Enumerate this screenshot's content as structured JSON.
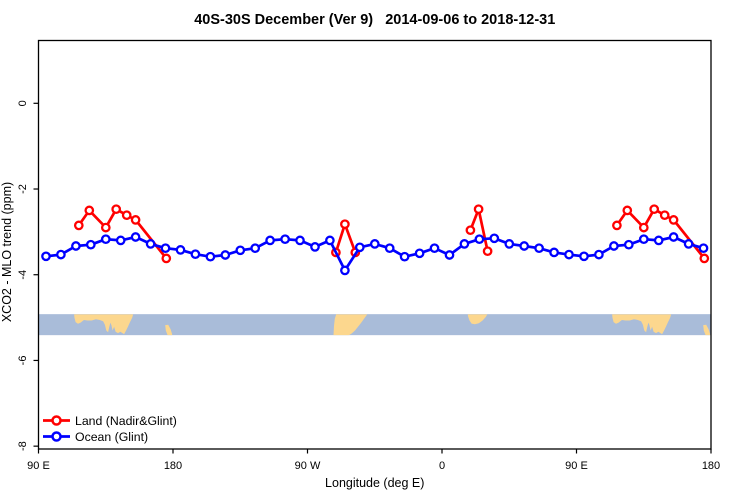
{
  "chart_data": {
    "type": "line",
    "title": "40S-30S December (Ver 9)   2014-09-06 to 2018-12-31",
    "xlabel": "Longitude (deg E)",
    "ylabel": "XCO2 - MLO trend (ppm)",
    "xlim": [
      90,
      540
    ],
    "ylim": [
      -8.1,
      1.45
    ],
    "grid": false,
    "x_ticks": [
      {
        "pos": 90,
        "label": "90 E"
      },
      {
        "pos": 180,
        "label": "180"
      },
      {
        "pos": 270,
        "label": "90 W"
      },
      {
        "pos": 360,
        "label": "0"
      },
      {
        "pos": 450,
        "label": "90 E"
      },
      {
        "pos": 540,
        "label": "180"
      }
    ],
    "y_ticks": [
      {
        "pos": 0,
        "label": "0"
      },
      {
        "pos": -2,
        "label": "-2"
      },
      {
        "pos": -4,
        "label": "-4"
      },
      {
        "pos": -6,
        "label": "-6"
      },
      {
        "pos": -8,
        "label": "-8"
      }
    ],
    "legend": {
      "position": "bottom-left",
      "items": [
        {
          "label": "Land (Nadir&Glint)",
          "color": "#ff0000"
        },
        {
          "label": "Ocean (Glint)",
          "color": "#0000ff"
        }
      ]
    },
    "series": [
      {
        "name": "Land (Nadir&Glint)",
        "color": "#ff0000",
        "marker": "open-circle",
        "segments": [
          [
            [
              117,
              -2.85
            ],
            [
              124,
              -2.5
            ],
            [
              135,
              -2.9
            ],
            [
              142,
              -2.47
            ],
            [
              149,
              -2.61
            ],
            [
              155,
              -2.72
            ],
            [
              175.5,
              -3.62
            ]
          ],
          [
            [
              289,
              -3.48
            ],
            [
              295,
              -2.82
            ],
            [
              302,
              -3.48
            ]
          ],
          [
            [
              379,
              -2.96
            ],
            [
              384.5,
              -2.47
            ],
            [
              390.5,
              -3.45
            ]
          ],
          [
            [
              477,
              -2.85
            ],
            [
              484,
              -2.5
            ],
            [
              495,
              -2.9
            ],
            [
              502,
              -2.47
            ],
            [
              509,
              -2.61
            ],
            [
              515,
              -2.72
            ],
            [
              535.5,
              -3.62
            ]
          ]
        ]
      },
      {
        "name": "Ocean (Glint)",
        "color": "#0000ff",
        "marker": "open-circle",
        "segments": [
          [
            [
              95,
              -3.57
            ],
            [
              105,
              -3.53
            ],
            [
              115,
              -3.33
            ],
            [
              125,
              -3.3
            ],
            [
              135,
              -3.17
            ],
            [
              145,
              -3.2
            ],
            [
              155,
              -3.12
            ],
            [
              165,
              -3.28
            ],
            [
              175,
              -3.38
            ],
            [
              185,
              -3.42
            ],
            [
              195,
              -3.52
            ],
            [
              205,
              -3.58
            ],
            [
              215,
              -3.54
            ],
            [
              225,
              -3.43
            ],
            [
              235,
              -3.38
            ],
            [
              245,
              -3.2
            ],
            [
              255,
              -3.17
            ],
            [
              265,
              -3.2
            ],
            [
              275,
              -3.35
            ],
            [
              285,
              -3.2
            ],
            [
              295,
              -3.9
            ],
            [
              305,
              -3.36
            ],
            [
              315,
              -3.28
            ],
            [
              325,
              -3.38
            ],
            [
              335,
              -3.58
            ],
            [
              345,
              -3.5
            ],
            [
              355,
              -3.38
            ],
            [
              365,
              -3.54
            ],
            [
              375,
              -3.28
            ],
            [
              385,
              -3.17
            ],
            [
              395,
              -3.15
            ],
            [
              405,
              -3.28
            ],
            [
              415,
              -3.33
            ],
            [
              425,
              -3.38
            ],
            [
              435,
              -3.48
            ],
            [
              445,
              -3.53
            ],
            [
              455,
              -3.57
            ],
            [
              465,
              -3.53
            ],
            [
              475,
              -3.33
            ],
            [
              485,
              -3.3
            ],
            [
              495,
              -3.17
            ],
            [
              505,
              -3.2
            ],
            [
              515,
              -3.12
            ],
            [
              525,
              -3.28
            ],
            [
              535,
              -3.38
            ]
          ]
        ]
      }
    ],
    "map_strip": {
      "y_top": -4.92,
      "y_bottom": -5.41,
      "ocean_color": "#a9bcd9",
      "land_color": "#fcd78e",
      "lands": [
        {
          "name": "australia",
          "offsets": [
            0,
            360
          ],
          "points": [
            [
              113.8,
              0
            ],
            [
              153.4,
              0
            ],
            [
              152.6,
              0.18
            ],
            [
              151.2,
              0.38
            ],
            [
              149.8,
              0.6
            ],
            [
              148.6,
              0.78
            ],
            [
              147.3,
              0.95
            ],
            [
              146.2,
              0.9
            ],
            [
              144.8,
              0.84
            ],
            [
              143.2,
              0.9
            ],
            [
              141.6,
              0.84
            ],
            [
              140.6,
              0.6
            ],
            [
              139.6,
              0.78
            ],
            [
              138.8,
              0.52
            ],
            [
              138.1,
              0.4
            ],
            [
              137.3,
              0.62
            ],
            [
              136.6,
              0.86
            ],
            [
              135.4,
              0.78
            ],
            [
              134.4,
              0.5
            ],
            [
              133.2,
              0.34
            ],
            [
              131.0,
              0.28
            ],
            [
              128.4,
              0.24
            ],
            [
              125.6,
              0.3
            ],
            [
              122.8,
              0.3
            ],
            [
              120.4,
              0.28
            ],
            [
              118.2,
              0.4
            ],
            [
              116.4,
              0.46
            ],
            [
              114.8,
              0.38
            ],
            [
              114.1,
              0.18
            ]
          ]
        },
        {
          "name": "new-zealand",
          "offsets": [
            0,
            360
          ],
          "points": [
            [
              174.8,
              0.52
            ],
            [
              176.8,
              0.5
            ],
            [
              178.4,
              0.72
            ],
            [
              179.4,
              0.95
            ],
            [
              179.4,
              1.0
            ],
            [
              176.4,
              1.0
            ],
            [
              175.2,
              0.78
            ]
          ]
        },
        {
          "name": "south-america",
          "offsets": [
            0
          ],
          "points": [
            [
              289.2,
              0
            ],
            [
              310.0,
              0
            ],
            [
              308.0,
              0.2
            ],
            [
              305.8,
              0.42
            ],
            [
              303.8,
              0.6
            ],
            [
              301.8,
              0.78
            ],
            [
              299.6,
              0.92
            ],
            [
              297.6,
              1.0
            ],
            [
              287.4,
              1.0
            ],
            [
              287.7,
              0.55
            ],
            [
              288.3,
              0.22
            ]
          ]
        },
        {
          "name": "south-africa",
          "offsets": [
            0
          ],
          "points": [
            [
              377.2,
              0
            ],
            [
              390.4,
              0
            ],
            [
              389.2,
              0.14
            ],
            [
              387.2,
              0.3
            ],
            [
              384.6,
              0.43
            ],
            [
              382.0,
              0.48
            ],
            [
              379.8,
              0.45
            ],
            [
              378.4,
              0.3
            ],
            [
              377.5,
              0.12
            ]
          ]
        }
      ]
    }
  }
}
